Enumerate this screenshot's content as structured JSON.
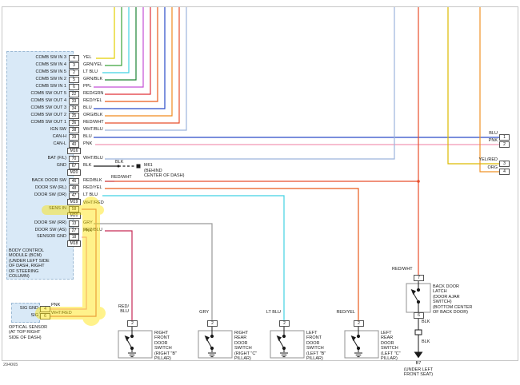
{
  "figure_number": "294065",
  "colors": {
    "yel": "#e3cf00",
    "grn_yel": "#3aa33a",
    "lt_blu": "#42d2e3",
    "grn_blk": "#1d8435",
    "ppl": "#c44fd6",
    "red_grn": "#e03038",
    "red_yel": "#ea5a1a",
    "blu": "#2a4ac8",
    "org_blk": "#f08a1e",
    "red_wht": "#e84f2c",
    "wht_blu": "#9cb4dc",
    "pnk": "#f298b4",
    "blk": "#1a1a1a",
    "red_blk": "#cc2a2a",
    "wht_red": "#dc6a6a",
    "gry": "#9a9a9a",
    "red_blu": "#c62a56",
    "yel_red": "#ddbb00",
    "org": "#f09428",
    "highlight": "#ffe400"
  },
  "bcm": {
    "title_lines": [
      "BODY CONTROL",
      "MODULE (BCM)",
      "(UNDER LEFT SIDE",
      "OF DASH, RIGHT",
      "OF STEERING",
      "COLUMN)"
    ],
    "connector_tags": [
      "M16",
      "M20",
      "M19",
      "M20",
      "M18"
    ],
    "pins": [
      {
        "name": "COMB SW IN 3",
        "pin": "4",
        "color": "YEL"
      },
      {
        "name": "COMB SW IN 4",
        "pin": "3",
        "color": "GRN/YEL"
      },
      {
        "name": "COMB SW IN 5",
        "pin": "2",
        "color": "LT BLU"
      },
      {
        "name": "COMB SW IN 2",
        "pin": "5",
        "color": "GRN/BLK"
      },
      {
        "name": "COMB SW IN 1",
        "pin": "6",
        "color": "PPL"
      },
      {
        "name": "COMB SW OUT 5",
        "pin": "22",
        "color": "RED/GRN"
      },
      {
        "name": "COMB SW OUT 4",
        "pin": "33",
        "color": "RED/YEL"
      },
      {
        "name": "COMB SW OUT 3",
        "pin": "34",
        "color": "BLU"
      },
      {
        "name": "COMB SW OUT 2",
        "pin": "35",
        "color": "ORG/BLK"
      },
      {
        "name": "COMB SW OUT 1",
        "pin": "36",
        "color": "RED/WHT"
      },
      {
        "name": "IGN SW",
        "pin": "38",
        "color": "WHT/BLU"
      },
      {
        "name": "CAN-H",
        "pin": "39",
        "color": "BLU"
      },
      {
        "name": "CAN-L",
        "pin": "40",
        "color": "PNK"
      },
      {
        "name": "BAT (F/L)",
        "pin": "70",
        "color": "WHT/BLU"
      },
      {
        "name": "GND",
        "pin": "67",
        "color": "BLK"
      },
      {
        "name": "BACK DOOR SW",
        "pin": "46",
        "color": "RED/BLK"
      },
      {
        "name": "DOOR SW (RL)",
        "pin": "48",
        "color": "RED/YEL"
      },
      {
        "name": "DOOR SW (DR)",
        "pin": "47",
        "color": "LT BLU"
      },
      {
        "name": "SENS IN",
        "pin": "58",
        "color": "WHT/RED"
      },
      {
        "name": "DOOR SW (RR)",
        "pin": "13",
        "color": "GRY"
      },
      {
        "name": "DOOR SW (AS)",
        "pin": "27",
        "color": "RED/BLU"
      },
      {
        "name": "SENSOR GND",
        "pin": "18",
        "color": "PNK"
      }
    ]
  },
  "ground_m61": {
    "wire": "BLK",
    "name": "M61",
    "location_lines": [
      "(BEHIND",
      "CENTER OF DASH)"
    ]
  },
  "backdoor_wire": {
    "mid_label": "RED/WHT"
  },
  "right_edge": [
    {
      "label": "BLU",
      "pin": "1"
    },
    {
      "label": "PNK",
      "pin": "2"
    },
    {
      "label": "YEL/RED",
      "pin": "3"
    },
    {
      "label": "ORG",
      "pin": "4"
    }
  ],
  "door_switches": [
    {
      "wire_lines": [
        "RED/",
        "BLU"
      ],
      "pin": "2",
      "label_lines": [
        "RIGHT",
        "FRONT",
        "DOOR",
        "SWITCH",
        "(RIGHT \"B\"",
        "PILLAR)"
      ]
    },
    {
      "wire_lines": [
        "GRY"
      ],
      "pin": "2",
      "label_lines": [
        "RIGHT",
        "REAR",
        "DOOR",
        "SWITCH",
        "(RIGHT \"C\"",
        "PILLAR)"
      ]
    },
    {
      "wire_lines": [
        "LT BLU"
      ],
      "pin": "2",
      "label_lines": [
        "LEFT",
        "FRONT",
        "DOOR",
        "SWITCH",
        "(LEFT \"B\"",
        "PILLAR)"
      ]
    },
    {
      "wire_lines": [
        "RED/YEL"
      ],
      "pin": "2",
      "label_lines": [
        "LEFT",
        "REAR",
        "DOOR",
        "SWITCH",
        "(LEFT \"C\"",
        "PILLAR)"
      ]
    }
  ],
  "latch": {
    "wire_label": "RED/WHT",
    "pin_top": "7",
    "pin_bottom": "6",
    "label_lines": [
      "BACK DOOR",
      "LATCH",
      "(DOOR AJAR",
      "SWITCH)",
      "(BOTTOM CENTER",
      "OF BACK DOOR)"
    ],
    "wire_below_1": "BLK",
    "wire_below_2": "BLK",
    "ground_name": "B7",
    "ground_location_lines": [
      "(UNDER LEFT",
      "FRONT SEAT)"
    ]
  },
  "optical_sensor": {
    "rows": [
      {
        "name": "SIG GND",
        "pin": "4",
        "wire": "PNK"
      },
      {
        "name": "SIG",
        "pin": "6",
        "wire": "WHT/RED"
      }
    ],
    "label_lines": [
      "OPTICAL SENSOR",
      "(AT TOP RIGHT",
      "SIDE OF DASH)"
    ]
  }
}
